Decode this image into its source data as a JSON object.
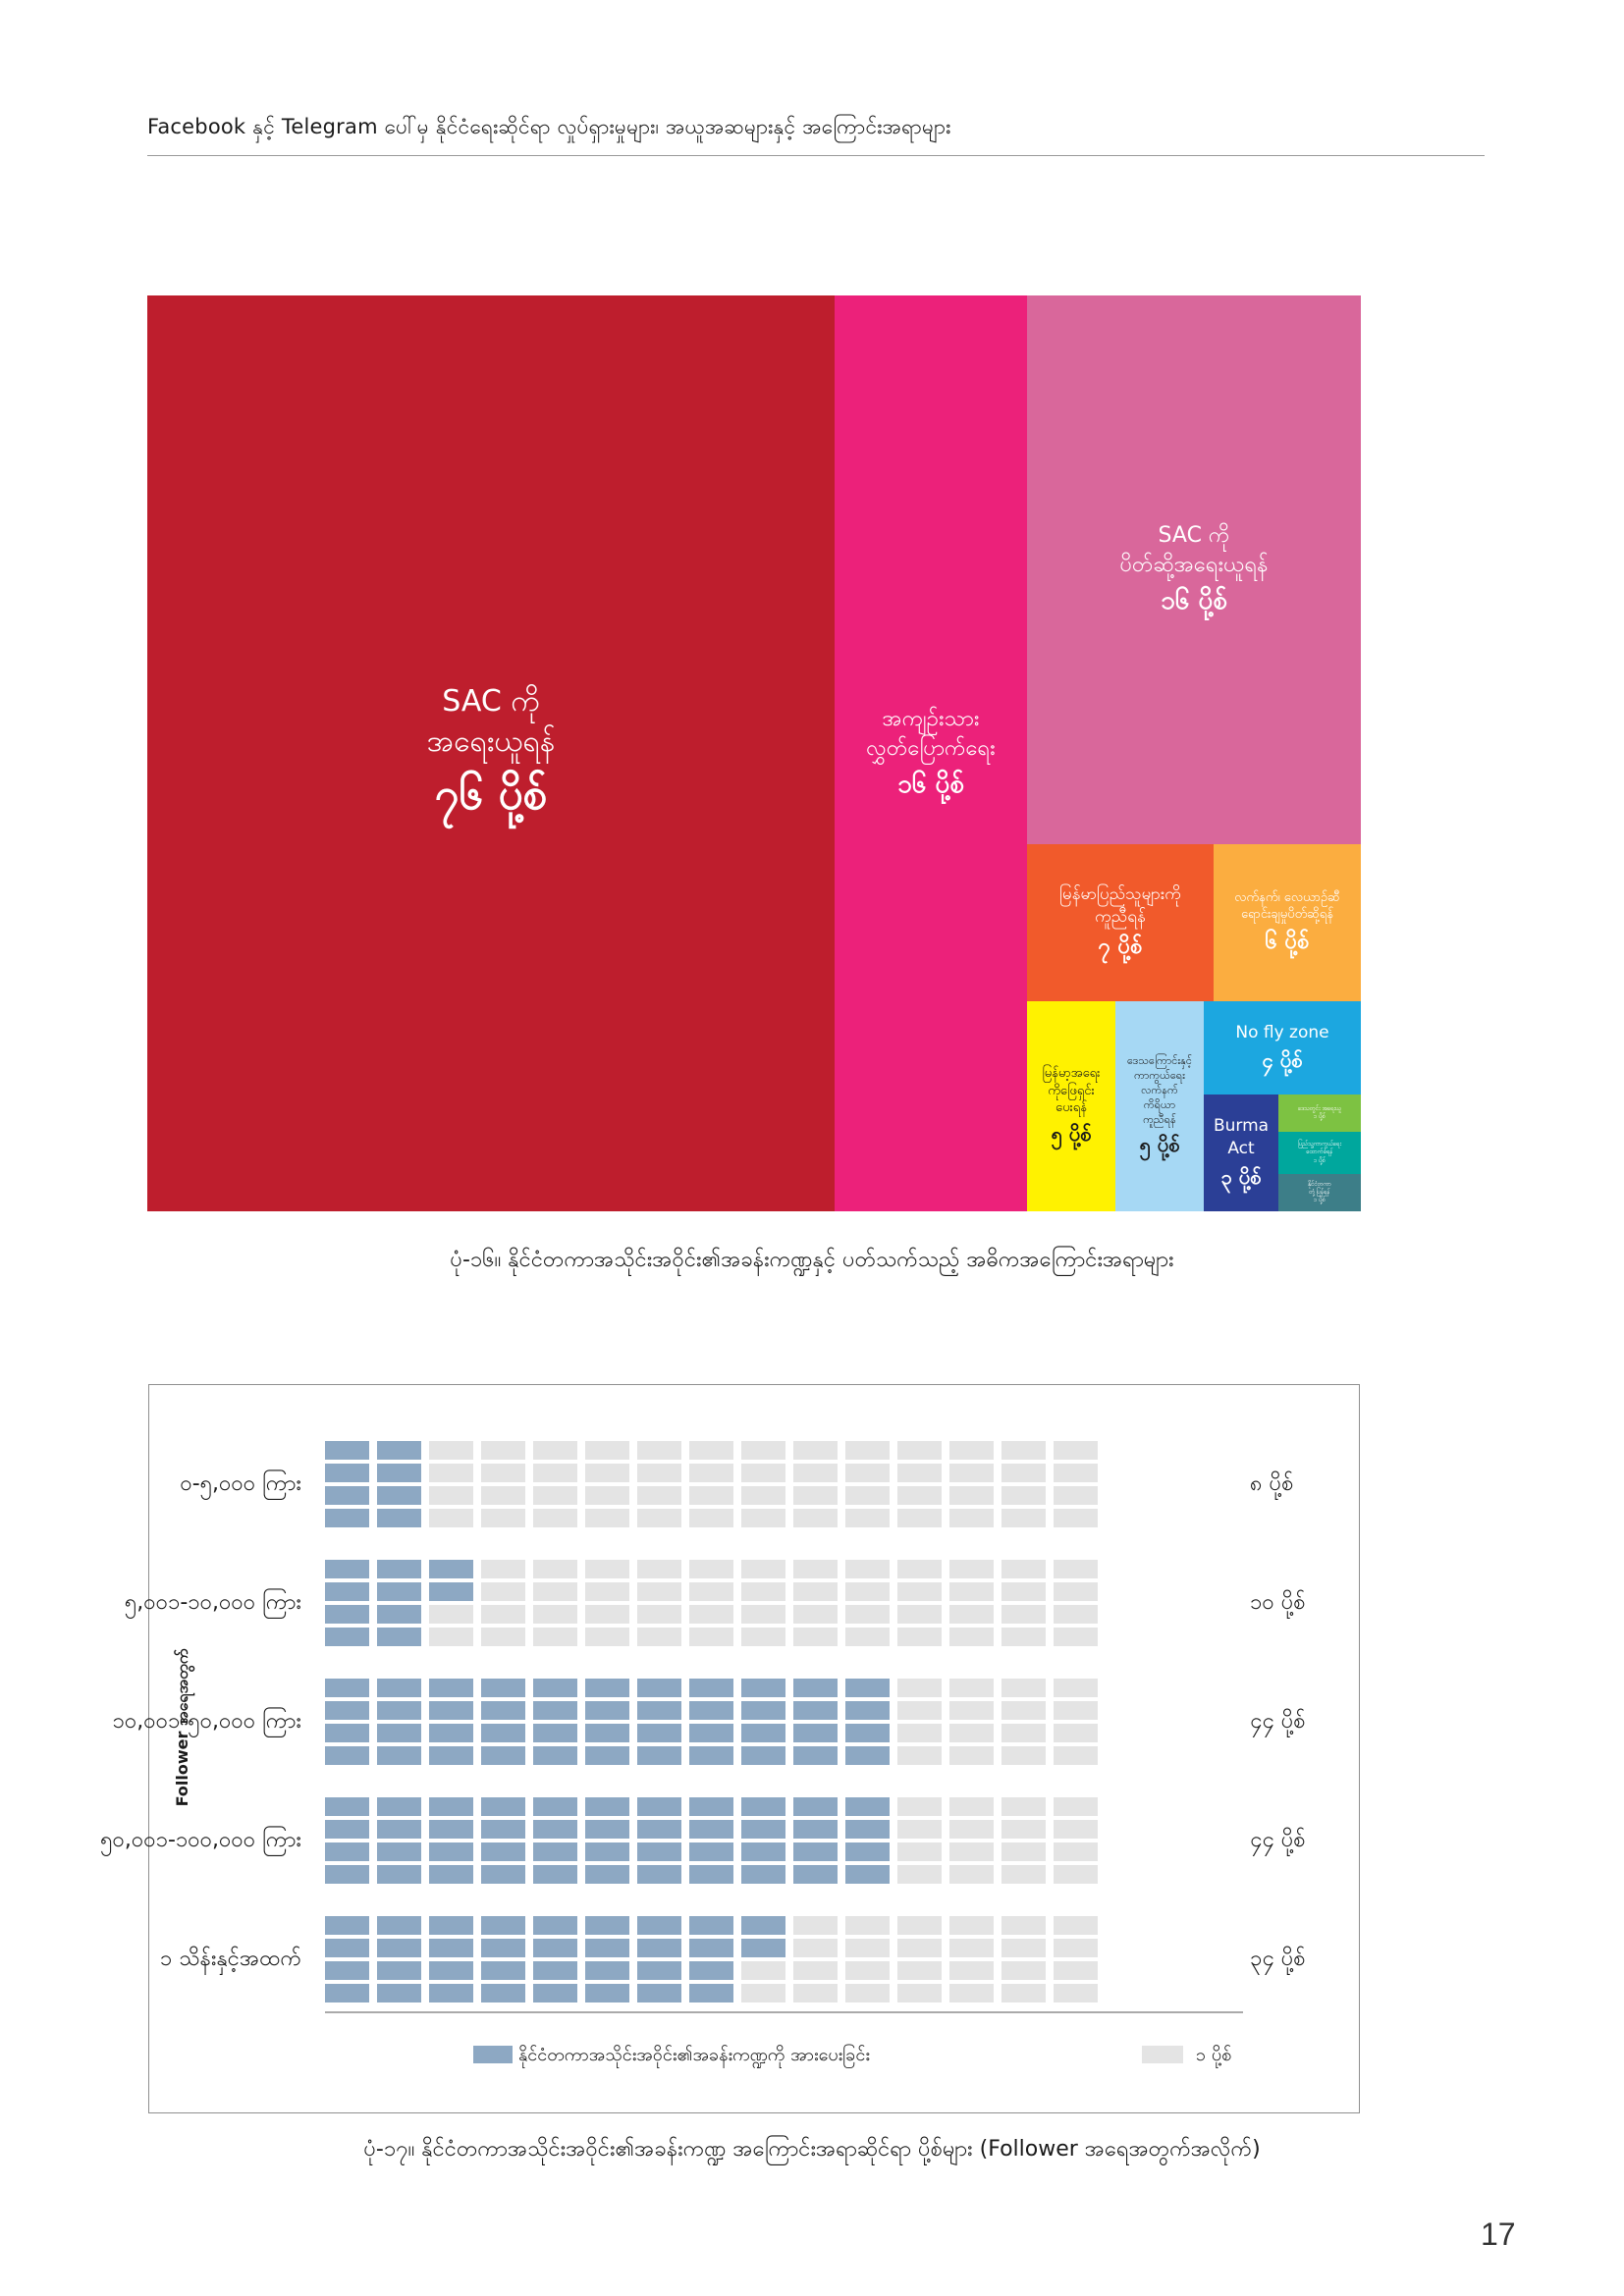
{
  "header": "Facebook နှင့် Telegram ပေါ်မှ နိုင်ငံရေးဆိုင်ရာ လှုပ်ရှားမှုများ၊ အယူအဆများနှင့် အကြောင်းအရာများ",
  "page_number": "17",
  "chart_data": [
    {
      "type": "treemap",
      "caption": "ပုံ-၁၆။ နိုင်ငံတကာအသိုင်းအဝိုင်း၏အခန်းကဏ္ဍနှင့် ပတ်သက်သည့် အဓိကအကြောင်းအရာများ",
      "items": [
        {
          "lines": [
            "SAC ကို",
            "အရေးယူရန်"
          ],
          "value_label": "၇၆ ပို့စ်",
          "value": 76,
          "color": "#be1e2d"
        },
        {
          "lines": [
            "အကျဉ်းသား",
            "လွှတ်ပြောက်ရေး"
          ],
          "value_label": "၁၆ ပို့စ်",
          "value": 16,
          "color": "#ec217a"
        },
        {
          "lines": [
            "SAC ကို",
            "ပိတ်ဆို့အရေးယူရန်"
          ],
          "value_label": "၁၆ ပို့စ်",
          "value": 16,
          "color": "#d9679b"
        },
        {
          "lines": [
            "မြန်မာပြည်သူများကို",
            "ကူညီရန်"
          ],
          "value_label": "၇ ပို့စ်",
          "value": 7,
          "color": "#f15a2b"
        },
        {
          "lines": [
            "လက်နက်၊ လေယာဉ်ဆီ",
            "ရောင်းချမှုပိတ်ဆို့ရန်"
          ],
          "value_label": "၆ ပို့စ်",
          "value": 6,
          "color": "#fbad40"
        },
        {
          "lines": [
            "မြန်မာ့အရေး",
            "ကိုဖြေရှင်း",
            "ပေးရန်"
          ],
          "value_label": "၅ ပို့စ်",
          "value": 5,
          "color": "#fff200"
        },
        {
          "lines": [
            "ဒေသကြောင်းနှင့်",
            "ကာကွယ်ရေး",
            "လက်နက်",
            "ကိရိယာ",
            "ကူညီရန်"
          ],
          "value_label": "၅ ပို့စ်",
          "value": 5,
          "color": "#a6d8f4"
        },
        {
          "lines": [
            "No fly zone"
          ],
          "value_label": "၄ ပို့စ်",
          "value": 4,
          "color": "#1ca7e0"
        },
        {
          "lines": [
            "Burma",
            "Act"
          ],
          "value_label": "၃ ပို့စ်",
          "value": 3,
          "color": "#2b3f96"
        },
        {
          "lines": [
            "ဒေသတွင်း အရေးယူ",
            "၁ ပို့စ်"
          ],
          "value_label": "",
          "value": 1,
          "color": "#7dc242"
        },
        {
          "lines": [
            "ပြည်သူ့ကာကွယ်ရေး",
            "ထောက်ခံရန်",
            "၁ ပို့စ်"
          ],
          "value_label": "",
          "value": 1,
          "color": "#00a79d"
        },
        {
          "lines": [
            "နိုင်ငံတကာ",
            "တုံ့ပြန်ရန်",
            "၁ ပို့စ်"
          ],
          "value_label": "",
          "value": 1,
          "color": "#3d7e88"
        }
      ]
    },
    {
      "type": "waffle",
      "caption": "ပုံ-၁၇။ နိုင်ငံတကာအသိုင်းအဝိုင်း၏အခန်းကဏ္ဍ အကြောင်းအရာဆိုင်ရာ ပို့စ်များ (Follower အရေအတွက်အလိုက်)",
      "ylabel": "Follower အရေအတွက်",
      "cells_per_row": 60,
      "filled_color": "#8da8c3",
      "empty_color": "#e4e4e4",
      "legend": {
        "filled": "နိုင်ငံတကာအသိုင်းအဝိုင်း၏အခန်းကဏ္ဍကို အားပေးခြင်း",
        "empty": "၁ ပို့စ်"
      },
      "rows": [
        {
          "category": "၀-၅,၀၀၀ ကြား",
          "value": 8,
          "value_label": "၈ ပို့စ်"
        },
        {
          "category": "၅,၀၀၁-၁၀,၀၀၀ ကြား",
          "value": 10,
          "value_label": "၁၀ ပို့စ်"
        },
        {
          "category": "၁၀,၀၀၁-၅၀,၀၀၀ ကြား",
          "value": 44,
          "value_label": "၄၄ ပို့စ်"
        },
        {
          "category": "၅၀,၀၀၁-၁၀၀,၀၀၀ ကြား",
          "value": 44,
          "value_label": "၄၄ ပို့စ်"
        },
        {
          "category": "၁ သိန်းနှင့်အထက်",
          "value": 34,
          "value_label": "၃၄ ပို့စ်"
        }
      ]
    }
  ]
}
